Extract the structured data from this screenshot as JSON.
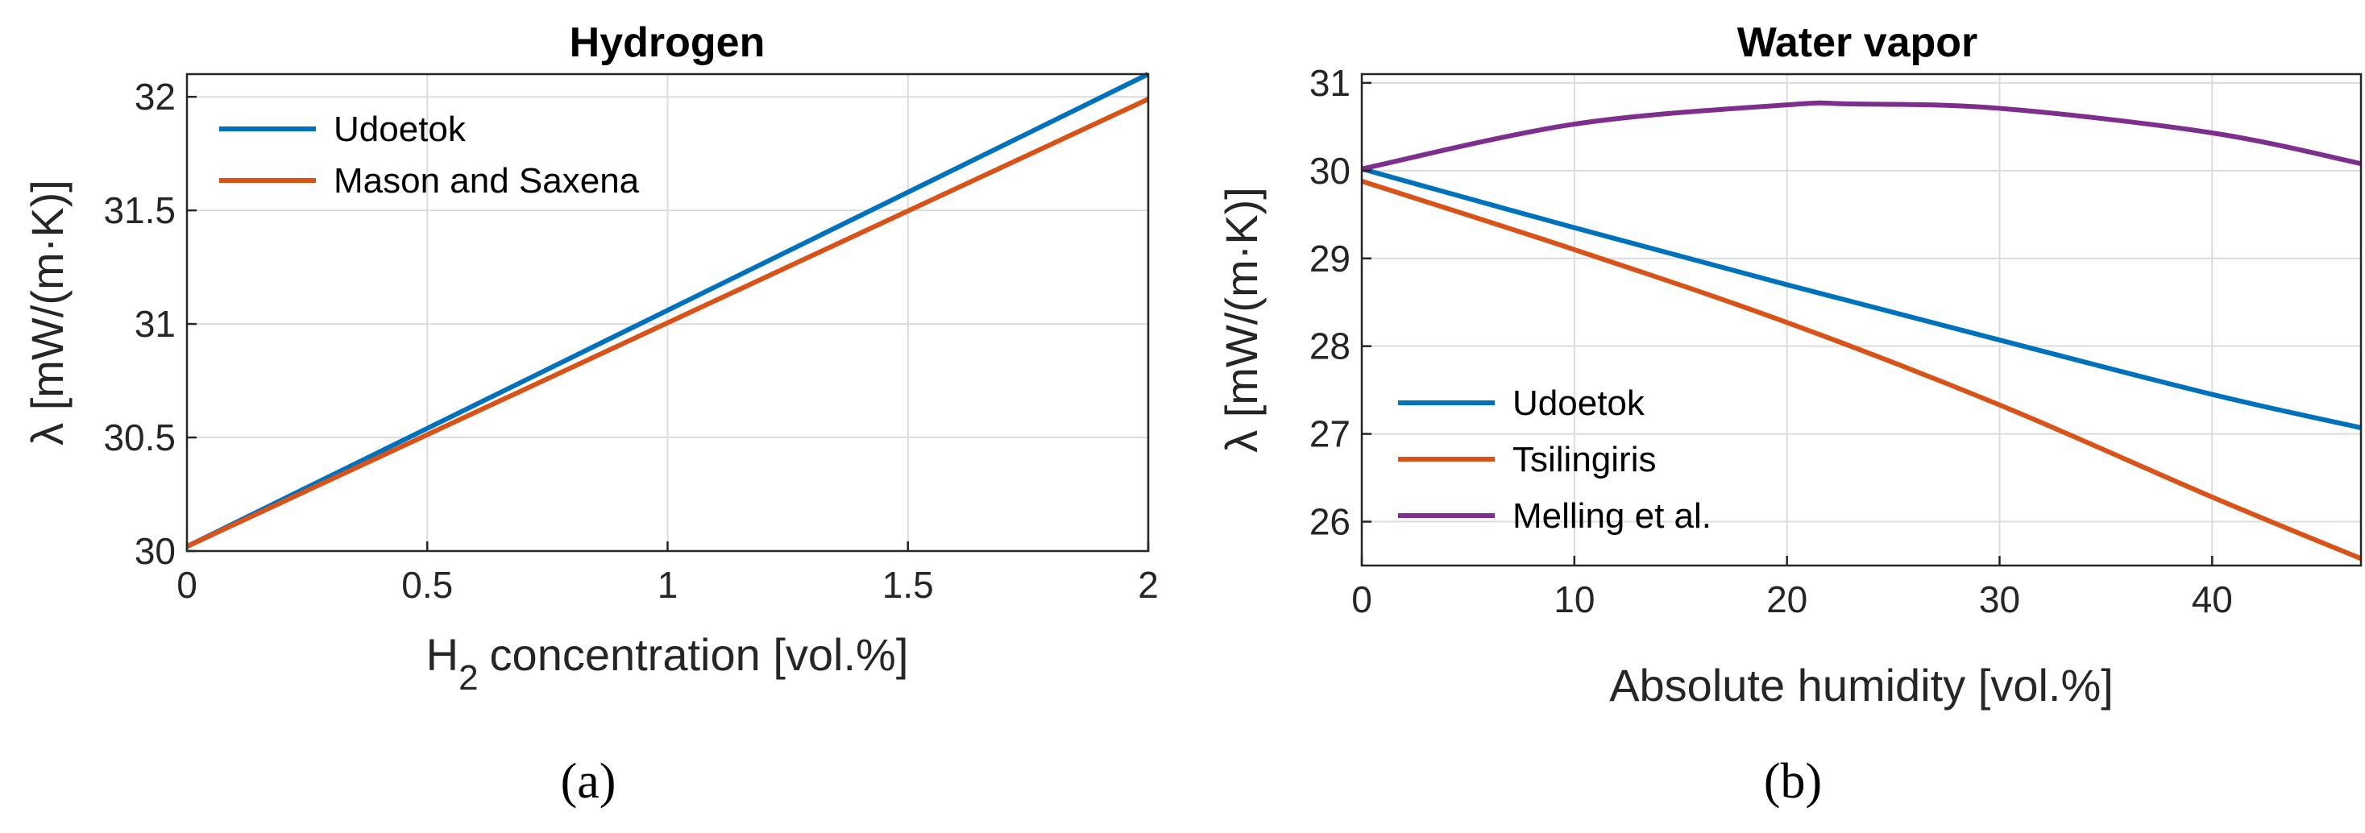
{
  "chart_data": [
    {
      "type": "line",
      "title": "Hydrogen",
      "xlabel": "concentration [vol.%]",
      "xlabel_species": "H",
      "xlabel_subscript": "2",
      "ylabel": "λ [mW/(m·K)]",
      "xlim": [
        0,
        2
      ],
      "ylim": [
        30,
        32.1
      ],
      "xticks": [
        0,
        0.5,
        1,
        1.5,
        2
      ],
      "xtick_labels": [
        "0",
        "0.5",
        "1",
        "1.5",
        "2"
      ],
      "yticks": [
        30,
        30.5,
        31,
        31.5,
        32
      ],
      "ytick_labels": [
        "30",
        "30.5",
        "31",
        "31.5",
        "32"
      ],
      "grid": true,
      "legend": "top-left",
      "panel_label": "(a)",
      "series": [
        {
          "name": "Udoetok",
          "color": "#0072BD",
          "x": [
            0,
            2
          ],
          "y": [
            30.02,
            32.1
          ]
        },
        {
          "name": "Mason and Saxena",
          "color": "#D95319",
          "x": [
            0,
            2
          ],
          "y": [
            30.02,
            31.99
          ]
        }
      ]
    },
    {
      "type": "line",
      "title": "Water vapor",
      "xlabel": "Absolute humidity [vol.%]",
      "ylabel": "λ [mW/(m·K)]",
      "xlim": [
        0,
        47
      ],
      "ylim": [
        25.5,
        31.1
      ],
      "xticks": [
        0,
        10,
        20,
        30,
        40
      ],
      "xtick_labels": [
        "0",
        "10",
        "20",
        "30",
        "40"
      ],
      "yticks": [
        26,
        27,
        28,
        29,
        30,
        31
      ],
      "ytick_labels": [
        "26",
        "27",
        "28",
        "29",
        "30",
        "31"
      ],
      "grid": true,
      "legend": "bottom-left",
      "panel_label": "(b)",
      "series": [
        {
          "name": "Udoetok",
          "color": "#0072BD",
          "x": [
            0,
            10,
            20,
            30,
            40,
            47
          ],
          "y": [
            30.02,
            29.35,
            28.7,
            28.07,
            27.45,
            27.07
          ]
        },
        {
          "name": "Tsilingiris",
          "color": "#D95319",
          "x": [
            0,
            10,
            20,
            30,
            40,
            47
          ],
          "y": [
            29.88,
            29.1,
            28.27,
            27.33,
            26.28,
            25.58
          ]
        },
        {
          "name": "Melling et al.",
          "color": "#7E2F8E",
          "x": [
            0,
            10,
            20,
            23,
            30,
            40,
            47
          ],
          "y": [
            30.02,
            30.53,
            30.75,
            30.76,
            30.71,
            30.43,
            30.08
          ]
        }
      ]
    }
  ]
}
